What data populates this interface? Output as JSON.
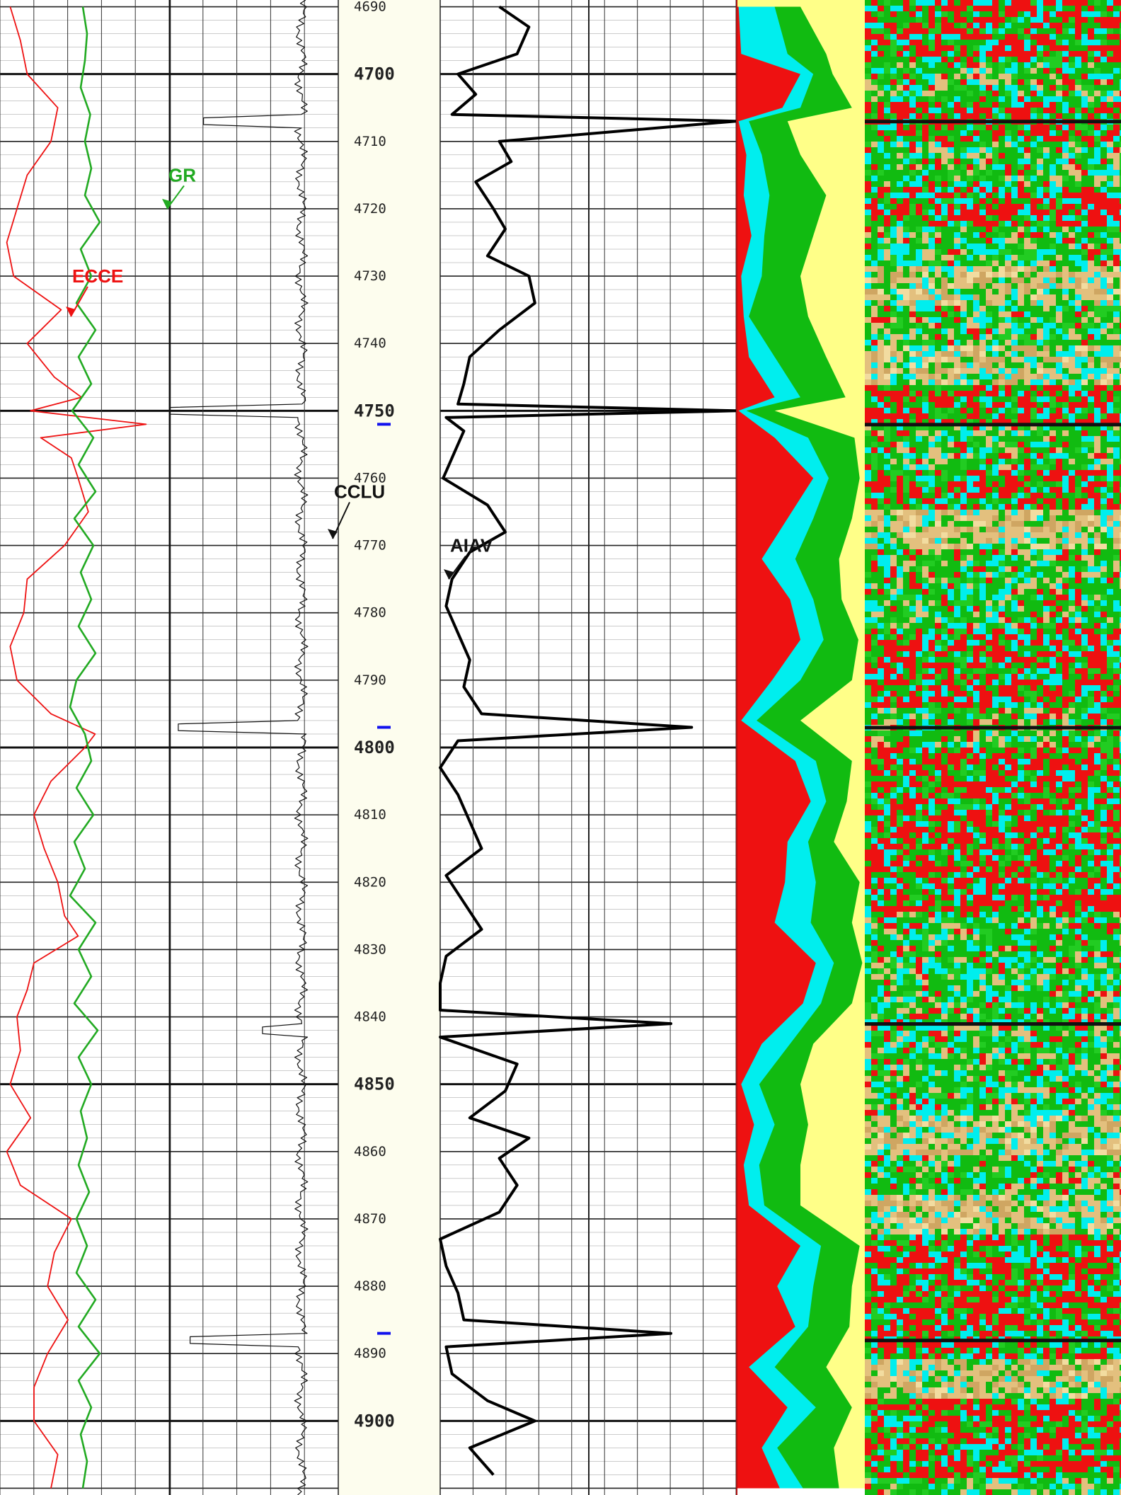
{
  "chart_data": {
    "type": "line",
    "title": "",
    "depth_axis": {
      "range": [
        4689,
        4911
      ],
      "labels": [
        4690,
        4700,
        4710,
        4720,
        4730,
        4740,
        4750,
        4760,
        4770,
        4780,
        4790,
        4800,
        4810,
        4820,
        4830,
        4840,
        4850,
        4860,
        4870,
        4880,
        4890,
        4900
      ],
      "major_labels": [
        4700,
        4750,
        4800,
        4850,
        4900
      ],
      "grid": true
    },
    "tracks": [
      {
        "id": "track1",
        "curves": [
          {
            "name": "ECCE",
            "color": "#ee1111",
            "depth": [
              4690,
              4695,
              4700,
              4705,
              4710,
              4715,
              4720,
              4725,
              4730,
              4735,
              4740,
              4745,
              4748,
              4750,
              4752,
              4754,
              4757,
              4760,
              4765,
              4770,
              4775,
              4780,
              4785,
              4790,
              4795,
              4798,
              4800,
              4805,
              4810,
              4815,
              4820,
              4825,
              4828,
              4832,
              4836,
              4840,
              4845,
              4850,
              4855,
              4860,
              4865,
              4870,
              4875,
              4880,
              4885,
              4890,
              4895,
              4900,
              4905,
              4910
            ],
            "values": [
              0.06,
              0.12,
              0.16,
              0.34,
              0.3,
              0.16,
              0.1,
              0.04,
              0.08,
              0.36,
              0.16,
              0.32,
              0.48,
              0.18,
              0.86,
              0.24,
              0.42,
              0.46,
              0.52,
              0.38,
              0.16,
              0.14,
              0.06,
              0.1,
              0.3,
              0.56,
              0.5,
              0.3,
              0.2,
              0.26,
              0.34,
              0.38,
              0.46,
              0.2,
              0.16,
              0.1,
              0.12,
              0.06,
              0.18,
              0.04,
              0.12,
              0.42,
              0.32,
              0.28,
              0.4,
              0.28,
              0.2,
              0.2,
              0.34,
              0.3
            ],
            "range": [
              0,
              1
            ]
          },
          {
            "name": "GR",
            "color": "#22aa22",
            "depth": [
              4690,
              4694,
              4698,
              4702,
              4706,
              4710,
              4714,
              4718,
              4722,
              4726,
              4730,
              4734,
              4738,
              4742,
              4746,
              4750,
              4754,
              4758,
              4762,
              4766,
              4770,
              4774,
              4778,
              4782,
              4786,
              4790,
              4794,
              4798,
              4802,
              4806,
              4810,
              4814,
              4818,
              4822,
              4826,
              4830,
              4834,
              4838,
              4842,
              4846,
              4850,
              4854,
              4858,
              4862,
              4866,
              4870,
              4874,
              4878,
              4882,
              4886,
              4890,
              4894,
              4898,
              4902,
              4906,
              4910
            ],
            "values": [
              0.48,
              0.52,
              0.5,
              0.46,
              0.55,
              0.5,
              0.56,
              0.5,
              0.64,
              0.46,
              0.56,
              0.42,
              0.6,
              0.44,
              0.56,
              0.38,
              0.58,
              0.44,
              0.6,
              0.4,
              0.58,
              0.46,
              0.56,
              0.44,
              0.6,
              0.42,
              0.36,
              0.5,
              0.56,
              0.42,
              0.58,
              0.4,
              0.5,
              0.36,
              0.6,
              0.44,
              0.56,
              0.4,
              0.62,
              0.44,
              0.56,
              0.46,
              0.52,
              0.44,
              0.54,
              0.42,
              0.52,
              0.42,
              0.6,
              0.44,
              0.64,
              0.44,
              0.56,
              0.46,
              0.52,
              0.48
            ],
            "range": [
              -0.3,
              1.3
            ]
          }
        ],
        "annotations": [
          {
            "text": "ECCE",
            "depth": 4730,
            "curve": "ECCE"
          },
          {
            "text": "GR",
            "depth": 4715,
            "curve": "GR"
          }
        ]
      },
      {
        "id": "track2",
        "curves": [
          {
            "name": "CCLU",
            "color": "#111111",
            "baseline": 0.78,
            "spikes": [
              {
                "depth": 4707,
                "value": 0.2
              },
              {
                "depth": 4750,
                "value": 0.0
              },
              {
                "depth": 4797,
                "value": 0.05
              },
              {
                "depth": 4842,
                "value": 0.55
              },
              {
                "depth": 4888,
                "value": 0.12
              }
            ],
            "range": [
              0,
              1
            ]
          }
        ],
        "annotations": [
          {
            "text": "CCLU",
            "depth": 4762,
            "curve": "CCLU"
          }
        ]
      },
      {
        "id": "track3",
        "curves": [
          {
            "name": "AIAV",
            "color": "#000000",
            "depth": [
              4690,
              4693,
              4697,
              4700,
              4703,
              4706,
              4707,
              4710,
              4713,
              4716,
              4720,
              4723,
              4727,
              4730,
              4734,
              4738,
              4742,
              4746,
              4749,
              4750,
              4751,
              4753,
              4757,
              4760,
              4764,
              4768,
              4771,
              4775,
              4779,
              4783,
              4787,
              4791,
              4795,
              4797,
              4799,
              4803,
              4807,
              4811,
              4815,
              4819,
              4823,
              4827,
              4831,
              4835,
              4839,
              4841,
              4843,
              4847,
              4851,
              4855,
              4858,
              4861,
              4865,
              4869,
              4873,
              4877,
              4881,
              4885,
              4887,
              4889,
              4893,
              4897,
              4900,
              4904,
              4908
            ],
            "values": [
              0.2,
              0.3,
              0.26,
              0.06,
              0.12,
              0.04,
              1.0,
              0.2,
              0.24,
              0.12,
              0.18,
              0.22,
              0.16,
              0.3,
              0.32,
              0.2,
              0.1,
              0.08,
              0.06,
              1.0,
              0.02,
              0.08,
              0.04,
              0.01,
              0.16,
              0.22,
              0.1,
              0.04,
              0.02,
              0.06,
              0.1,
              0.08,
              0.14,
              0.85,
              0.06,
              0.0,
              0.06,
              0.1,
              0.14,
              0.02,
              0.08,
              0.14,
              0.02,
              0.0,
              0.0,
              0.78,
              0.0,
              0.26,
              0.22,
              0.1,
              0.3,
              0.2,
              0.26,
              0.2,
              0.0,
              0.02,
              0.06,
              0.08,
              0.78,
              0.02,
              0.04,
              0.16,
              0.32,
              0.1,
              0.18
            ],
            "range": [
              0,
              1
            ]
          }
        ],
        "annotations": [
          {
            "text": "AIAV",
            "depth": 4770,
            "curve": "AIAV"
          }
        ]
      },
      {
        "id": "track4",
        "type": "area",
        "layers": [
          {
            "color": "#ee1111"
          },
          {
            "color": "#00eeee"
          },
          {
            "color": "#11bb11"
          },
          {
            "color": "#ffff88"
          }
        ],
        "depth": [
          4690,
          4697,
          4700,
          4705,
          4707,
          4712,
          4718,
          4724,
          4730,
          4736,
          4742,
          4748,
          4750,
          4754,
          4760,
          4766,
          4772,
          4778,
          4784,
          4790,
          4796,
          4802,
          4808,
          4814,
          4820,
          4826,
          4832,
          4838,
          4844,
          4850,
          4856,
          4862,
          4868,
          4874,
          4880,
          4886,
          4892,
          4898,
          4904,
          4910
        ],
        "cumulative": [
          [
            0.02,
            0.3,
            0.5,
            1.0
          ],
          [
            0.04,
            0.4,
            0.7,
            1.0
          ],
          [
            0.5,
            0.6,
            0.75,
            1.0
          ],
          [
            0.36,
            0.5,
            0.9,
            1.0
          ],
          [
            0.02,
            0.1,
            0.4,
            1.0
          ],
          [
            0.08,
            0.2,
            0.5,
            1.0
          ],
          [
            0.06,
            0.26,
            0.7,
            1.0
          ],
          [
            0.12,
            0.22,
            0.6,
            1.0
          ],
          [
            0.04,
            0.2,
            0.5,
            1.0
          ],
          [
            0.06,
            0.1,
            0.56,
            1.0
          ],
          [
            0.1,
            0.3,
            0.7,
            1.0
          ],
          [
            0.3,
            0.5,
            0.85,
            1.0
          ],
          [
            0.02,
            0.08,
            0.3,
            1.0
          ],
          [
            0.3,
            0.56,
            0.92,
            1.0
          ],
          [
            0.6,
            0.72,
            0.96,
            1.0
          ],
          [
            0.4,
            0.6,
            0.9,
            1.0
          ],
          [
            0.2,
            0.46,
            0.8,
            1.0
          ],
          [
            0.42,
            0.6,
            0.82,
            1.0
          ],
          [
            0.5,
            0.68,
            0.95,
            1.0
          ],
          [
            0.28,
            0.5,
            0.9,
            1.0
          ],
          [
            0.04,
            0.16,
            0.5,
            1.0
          ],
          [
            0.46,
            0.62,
            0.9,
            1.0
          ],
          [
            0.58,
            0.7,
            0.86,
            1.0
          ],
          [
            0.4,
            0.56,
            0.76,
            1.0
          ],
          [
            0.38,
            0.62,
            0.96,
            1.0
          ],
          [
            0.3,
            0.58,
            0.9,
            1.0
          ],
          [
            0.62,
            0.76,
            0.98,
            1.0
          ],
          [
            0.52,
            0.66,
            0.9,
            1.0
          ],
          [
            0.2,
            0.42,
            0.6,
            1.0
          ],
          [
            0.04,
            0.18,
            0.5,
            1.0
          ],
          [
            0.14,
            0.3,
            0.56,
            1.0
          ],
          [
            0.06,
            0.18,
            0.5,
            1.0
          ],
          [
            0.1,
            0.22,
            0.5,
            1.0
          ],
          [
            0.5,
            0.66,
            0.96,
            1.0
          ],
          [
            0.32,
            0.6,
            0.9,
            1.0
          ],
          [
            0.46,
            0.56,
            0.88,
            1.0
          ],
          [
            0.1,
            0.3,
            0.7,
            1.0
          ],
          [
            0.4,
            0.62,
            0.9,
            1.0
          ],
          [
            0.2,
            0.32,
            0.76,
            1.0
          ],
          [
            0.34,
            0.52,
            0.8,
            1.0
          ]
        ]
      },
      {
        "id": "track5",
        "type": "heatmap",
        "palette": [
          "#11bb11",
          "#22cc22",
          "#ee1111",
          "#00eeee",
          "#e3c07e",
          "#cfa662",
          "#f2dca0",
          "#a67a3f",
          "#111111"
        ],
        "dark_bands": [
          4707,
          4752,
          4797,
          4841,
          4888
        ]
      }
    ],
    "depth_markers": [
      {
        "depth": 4752,
        "color": "#1111ee"
      },
      {
        "depth": 4797,
        "color": "#1111ee"
      },
      {
        "depth": 4887,
        "color": "#1111ee"
      }
    ]
  }
}
